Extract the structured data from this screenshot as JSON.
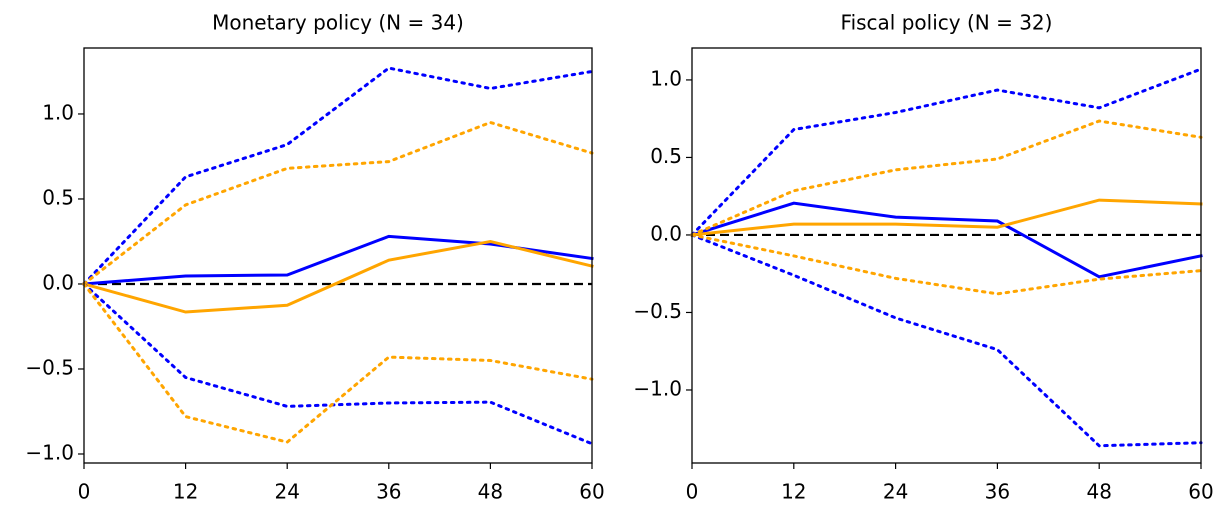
{
  "chart_data": [
    {
      "type": "line",
      "title": "Monetary policy (N = 34)",
      "x": [
        0,
        12,
        24,
        36,
        48,
        60
      ],
      "xlim": [
        0,
        60
      ],
      "xticks": [
        0,
        12,
        24,
        36,
        48,
        60
      ],
      "ylim": [
        -1.053,
        1.388
      ],
      "yticks": [
        {
          "value": -1,
          "label": "−1.0"
        },
        {
          "value": -0.5,
          "label": "−0.5"
        },
        {
          "value": 0,
          "label": "0.0"
        },
        0.5,
        {
          "value": 1,
          "label": "1.0"
        }
      ],
      "reference_line": {
        "value": 0,
        "color": "#000000",
        "style": "dashed"
      },
      "series": [
        {
          "color": "#0000ff",
          "style": "solid",
          "values": [
            0,
            0.047,
            0.053,
            0.28,
            0.235,
            0.15
          ]
        },
        {
          "color": "#ffa500",
          "style": "solid",
          "values": [
            0,
            -0.165,
            -0.125,
            0.14,
            0.25,
            0.105
          ]
        },
        {
          "color": "#0000ff",
          "style": "dotted",
          "values": [
            0,
            0.63,
            0.82,
            1.27,
            1.15,
            1.25
          ]
        },
        {
          "color": "#ffa500",
          "style": "dotted",
          "values": [
            0,
            0.465,
            0.68,
            0.72,
            0.95,
            0.77
          ]
        },
        {
          "color": "#0000ff",
          "style": "dotted",
          "values": [
            0,
            -0.55,
            -0.72,
            -0.7,
            -0.695,
            -0.94
          ]
        },
        {
          "color": "#ffa500",
          "style": "dotted",
          "values": [
            0,
            -0.78,
            -0.93,
            -0.43,
            -0.45,
            -0.56
          ]
        }
      ]
    },
    {
      "type": "line",
      "title": "Fiscal policy (N = 32)",
      "x": [
        0,
        12,
        24,
        36,
        48,
        60
      ],
      "xlim": [
        0,
        60
      ],
      "xticks": [
        0,
        12,
        24,
        36,
        48,
        60
      ],
      "ylim": [
        -1.471,
        1.206
      ],
      "yticks": [
        {
          "value": -1,
          "label": "−1.0"
        },
        {
          "value": -0.5,
          "label": "−0.5"
        },
        {
          "value": 0,
          "label": "0.0"
        },
        0.5,
        {
          "value": 1,
          "label": "1.0"
        }
      ],
      "reference_line": {
        "value": 0,
        "color": "#000000",
        "style": "dashed"
      },
      "series": [
        {
          "color": "#0000ff",
          "style": "solid",
          "values": [
            0,
            0.205,
            0.115,
            0.09,
            -0.27,
            -0.135
          ]
        },
        {
          "color": "#ffa500",
          "style": "solid",
          "values": [
            0,
            0.07,
            0.07,
            0.05,
            0.225,
            0.2
          ]
        },
        {
          "color": "#0000ff",
          "style": "dotted",
          "values": [
            0,
            0.68,
            0.79,
            0.935,
            0.82,
            1.07
          ]
        },
        {
          "color": "#ffa500",
          "style": "dotted",
          "values": [
            0,
            0.285,
            0.42,
            0.49,
            0.735,
            0.63
          ]
        },
        {
          "color": "#0000ff",
          "style": "dotted",
          "values": [
            0,
            -0.26,
            -0.535,
            -0.74,
            -1.36,
            -1.34
          ]
        },
        {
          "color": "#ffa500",
          "style": "dotted",
          "values": [
            0,
            -0.135,
            -0.28,
            -0.38,
            -0.285,
            -0.23
          ]
        }
      ]
    }
  ]
}
